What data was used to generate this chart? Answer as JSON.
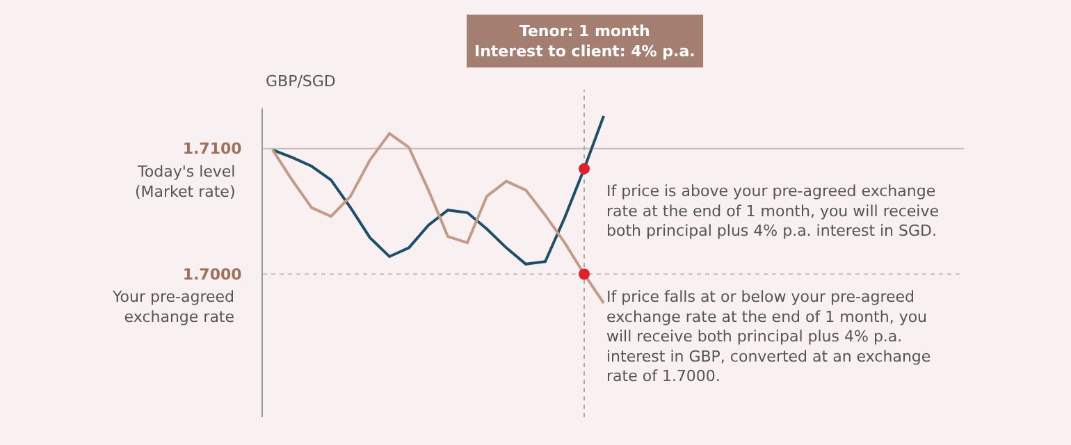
{
  "chart_data": {
    "type": "line",
    "ylabel": "GBP/SGD",
    "categories": [
      null,
      null,
      null,
      null,
      null,
      null,
      null,
      null,
      null,
      null,
      null,
      null,
      null,
      null,
      null,
      null,
      null,
      null,
      null,
      null,
      null,
      null,
      null,
      null,
      null,
      null,
      null,
      null,
      null,
      null,
      null,
      null,
      null,
      null,
      null,
      null
    ],
    "ylim": [
      1.6886,
      1.7132
    ],
    "yticks": [
      {
        "value": 1.71,
        "label": "1.7100"
      },
      {
        "value": 1.7,
        "label": "1.7000"
      }
    ],
    "tick_labels": "y",
    "grid": false,
    "line_style": "solid",
    "marker": "none",
    "series": [
      {
        "color": "#1f4e6b",
        "values": [
          1.7099,
          1.7093,
          1.7086,
          1.7075,
          1.7053,
          1.7029,
          1.7014,
          1.7021,
          1.7039,
          1.7051,
          1.7049,
          1.7036,
          1.7021,
          1.7008,
          1.701,
          1.7045,
          1.7084,
          1.7126,
          null,
          null,
          null,
          null,
          null,
          null,
          null,
          null,
          null,
          null,
          null,
          null,
          null,
          null,
          null,
          null,
          null,
          null
        ]
      },
      {
        "color": "#c49a88",
        "values": [
          1.7099,
          1.7075,
          1.7053,
          1.7046,
          1.7062,
          1.7091,
          1.7112,
          1.7101,
          1.7067,
          1.703,
          1.7025,
          1.7062,
          1.7074,
          1.7067,
          1.7047,
          1.7025,
          1.7,
          1.6977,
          null,
          null,
          null,
          null,
          null,
          null,
          null,
          null,
          null,
          null,
          null,
          null,
          null,
          null,
          null,
          null,
          null,
          null
        ]
      },
      {
        "type": "scatter",
        "color": "#e0202a",
        "marker": "circle",
        "values": [
          null,
          null,
          null,
          null,
          null,
          null,
          null,
          null,
          null,
          null,
          null,
          null,
          null,
          null,
          null,
          null,
          1.7084,
          null,
          null,
          null,
          null,
          null,
          null,
          null,
          null,
          null,
          null,
          null,
          null,
          null,
          null,
          null,
          null,
          null,
          null,
          null
        ]
      },
      {
        "type": "scatter",
        "color": "#e0202a",
        "marker": "circle",
        "values": [
          null,
          null,
          null,
          null,
          null,
          null,
          null,
          null,
          null,
          null,
          null,
          null,
          null,
          null,
          null,
          null,
          1.7,
          null,
          null,
          null,
          null,
          null,
          null,
          null,
          null,
          null,
          null,
          null,
          null,
          null,
          null,
          null,
          null,
          null,
          null,
          null
        ]
      }
    ],
    "ref_lines": [
      {
        "axis": "y",
        "value": 1.71,
        "label": "Today's level (Market rate)",
        "color": "#c8bcb8",
        "line_style": "solid"
      },
      {
        "axis": "y",
        "value": 1.7,
        "label": "Your pre-agreed exchange rate",
        "color": "#c8bcb8",
        "line_style": "dotted"
      }
    ],
    "annotations": [
      "Tenor: 1 month\nInterest to client: 4% p.a.",
      "If price is above your pre-agreed exchange rate at the end of 1 month, you will receive both principal plus 4% p.a. interest in SGD.",
      "If price falls at or below your pre-agreed exchange rate at the end of 1 month, you will receive both principal plus 4% p.a. interest in GBP, converted at an exchange rate of 1.7000."
    ]
  }
}
